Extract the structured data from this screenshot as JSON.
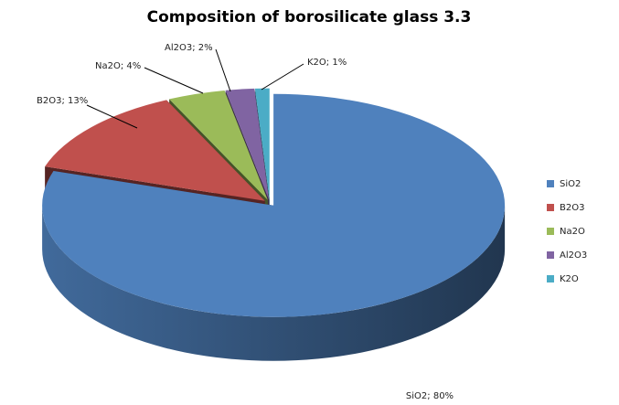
{
  "chart_data": {
    "type": "pie",
    "title": "Composition of borosilicate glass 3.3",
    "categories": [
      "SiO2",
      "B2O3",
      "Na2O",
      "Al2O3",
      "K2O"
    ],
    "values": [
      80,
      13,
      4,
      2,
      1
    ],
    "value_labels": [
      "SiO2; 80%",
      "B2O3; 13%",
      "Na2O; 4%",
      "Al2O3; 2%",
      "K2O; 1%"
    ],
    "colors": [
      "#4f81bd",
      "#c0504d",
      "#9bbb59",
      "#8064a2",
      "#4bacc6"
    ],
    "legend": "right"
  }
}
